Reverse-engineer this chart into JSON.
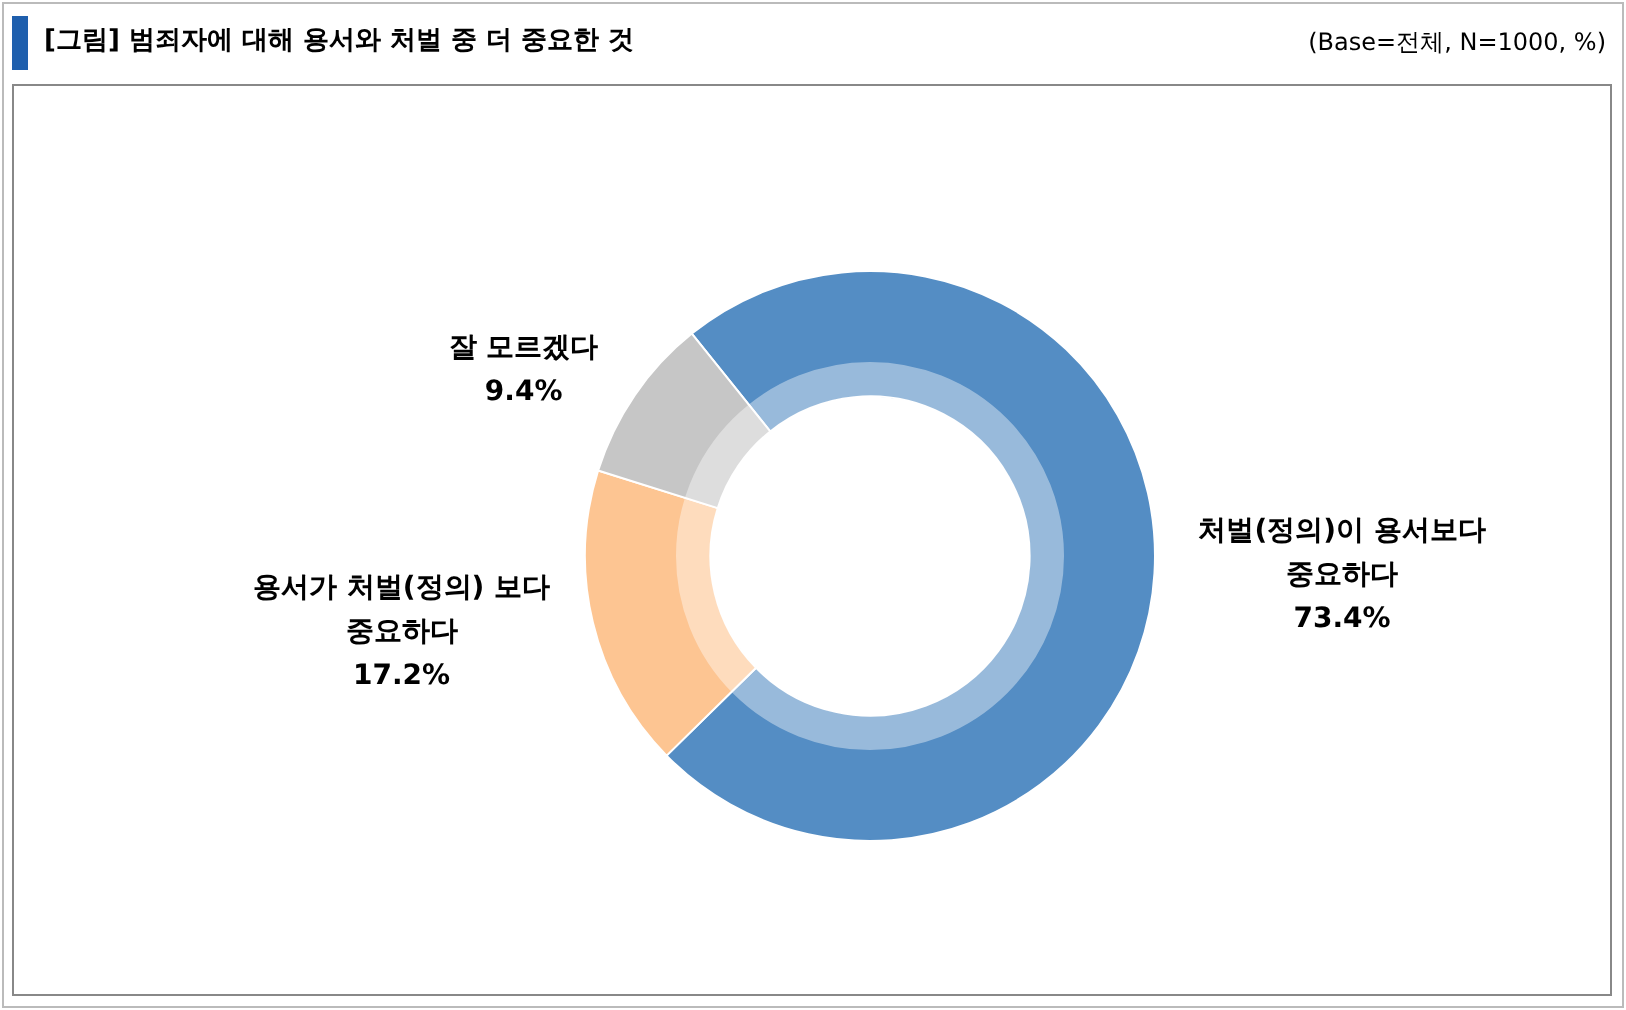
{
  "chart_data": {
    "type": "donut",
    "title": "[그림] 범죄자에 대해 용서와 처벌 중 더 중요한 것",
    "subtitle": "(Base=전체, N=1000, %)",
    "categories": [
      "처벌(정의)이 용서보다 중요하다",
      "용서가 처벌(정의) 보다 중요하다",
      "잘 모르겠다"
    ],
    "values": [
      73.4,
      17.2,
      9.4
    ],
    "colors": [
      "#548dc4",
      "#fdc592",
      "#c6c6c6"
    ],
    "value_labels": [
      "73.4%",
      "17.2%",
      "9.4%"
    ],
    "legend": false
  }
}
